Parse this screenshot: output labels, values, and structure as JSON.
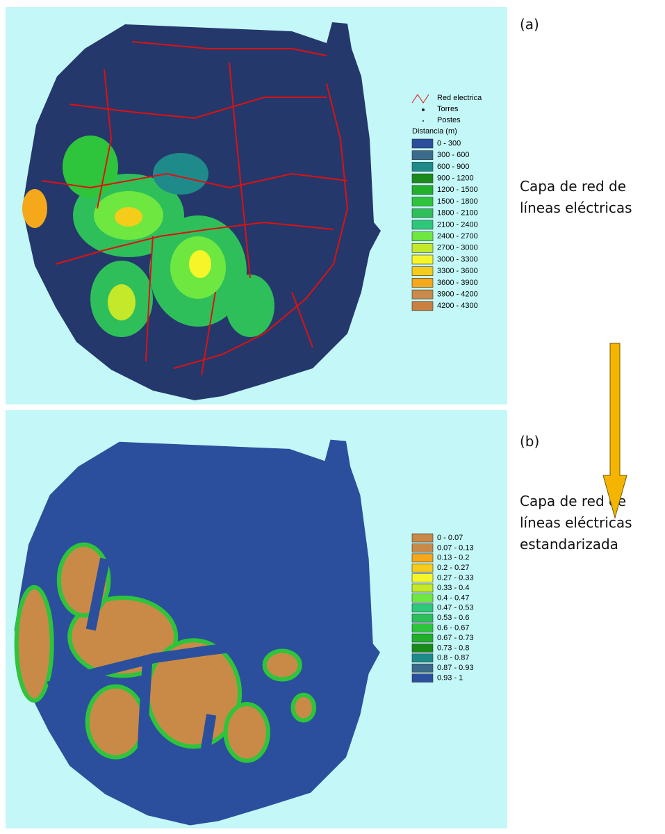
{
  "panels": [
    {
      "label": "(a)",
      "caption": [
        "Capa de red de",
        "líneas eléctricas"
      ],
      "legend": {
        "symbols": [
          "Red electrica",
          "Torres",
          "Postes"
        ],
        "title": "Distancia  (m)",
        "classes": [
          {
            "label": "0 - 300",
            "color": "#2b4f9c"
          },
          {
            "label": "300 - 600",
            "color": "#3a6b8c"
          },
          {
            "label": "600 - 900",
            "color": "#1e8a8a"
          },
          {
            "label": "900 - 1200",
            "color": "#1a8a1a"
          },
          {
            "label": "1200 - 1500",
            "color": "#22b02a"
          },
          {
            "label": "1500 - 1800",
            "color": "#2ec43c"
          },
          {
            "label": "1800 - 2100",
            "color": "#2fbf5a"
          },
          {
            "label": "2100 - 2400",
            "color": "#2ec87a"
          },
          {
            "label": "2400 - 2700",
            "color": "#6ee840"
          },
          {
            "label": "2700 - 3000",
            "color": "#c4e82a"
          },
          {
            "label": "3000 - 3300",
            "color": "#f5f52a"
          },
          {
            "label": "3300 - 3600",
            "color": "#f5cc1a"
          },
          {
            "label": "3600 - 3900",
            "color": "#f5a81a"
          },
          {
            "label": "3900 - 4200",
            "color": "#c98a4a"
          },
          {
            "label": "4200 - 4300",
            "color": "#c98040"
          }
        ]
      }
    },
    {
      "label": "(b)",
      "caption": [
        "Capa de red de",
        "líneas eléctricas",
        "estandarizada"
      ],
      "legend": {
        "classes": [
          {
            "label": "0 - 0.07",
            "color": "#c98a48"
          },
          {
            "label": "0.07 - 0.13",
            "color": "#c98a48"
          },
          {
            "label": "0.13 - 0.2",
            "color": "#f5a81a"
          },
          {
            "label": "0.2 - 0.27",
            "color": "#f5cc1a"
          },
          {
            "label": "0.27 - 0.33",
            "color": "#f5f52a"
          },
          {
            "label": "0.33 - 0.4",
            "color": "#c4e82a"
          },
          {
            "label": "0.4 - 0.47",
            "color": "#6ee840"
          },
          {
            "label": "0.47 - 0.53",
            "color": "#2ec87a"
          },
          {
            "label": "0.53 - 0.6",
            "color": "#2fbf5a"
          },
          {
            "label": "0.6 - 0.67",
            "color": "#2ec43c"
          },
          {
            "label": "0.67 - 0.73",
            "color": "#22b02a"
          },
          {
            "label": "0.73 - 0.8",
            "color": "#1a8a1a"
          },
          {
            "label": "0.8 - 0.87",
            "color": "#1e8a8a"
          },
          {
            "label": "0.87 - 0.93",
            "color": "#3a6b8c"
          },
          {
            "label": "0.93 - 1",
            "color": "#2b4f9c"
          }
        ]
      }
    }
  ]
}
